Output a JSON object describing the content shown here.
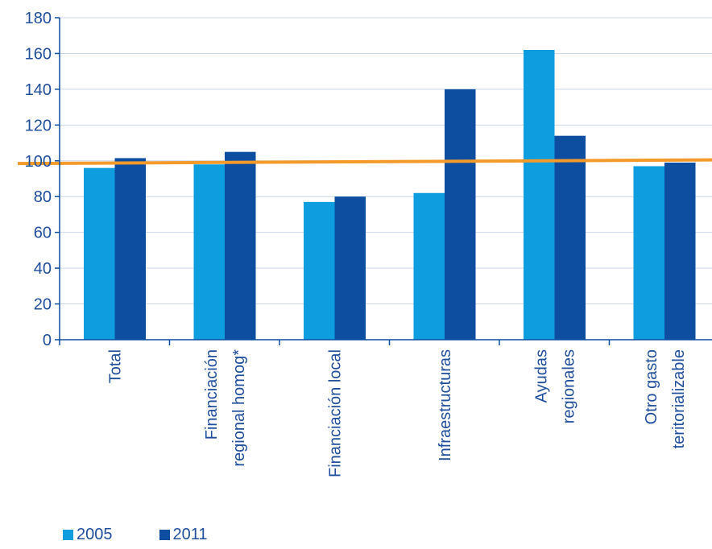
{
  "chart_data": {
    "type": "bar",
    "categories": [
      [
        "Total"
      ],
      [
        "Financiación",
        "regional homog*"
      ],
      [
        "Financiación local"
      ],
      [
        "Infraestructuras"
      ],
      [
        "Ayudas",
        "regionales"
      ],
      [
        "Otro gasto",
        "teritorializable"
      ]
    ],
    "series": [
      {
        "name": "2005",
        "color": "#0e9ee0",
        "values": [
          96,
          98,
          77,
          82,
          162,
          97
        ]
      },
      {
        "name": "2011",
        "color": "#0d4ea0",
        "values": [
          101.5,
          105,
          80,
          140,
          114,
          99
        ]
      }
    ],
    "reference_line": {
      "color": "#f39a2a",
      "start": 98.5,
      "end": 100.5
    },
    "ylim": [
      0,
      180
    ],
    "yticks": [
      "0",
      "20",
      "40",
      "60",
      "80",
      "100",
      "120",
      "140",
      "160",
      "180"
    ],
    "grid": true,
    "grid_color": "#c9d7ea",
    "axis_color": "#0d4ea0",
    "text_color": "#1f4e9c",
    "legend_position": "bottom-left"
  }
}
